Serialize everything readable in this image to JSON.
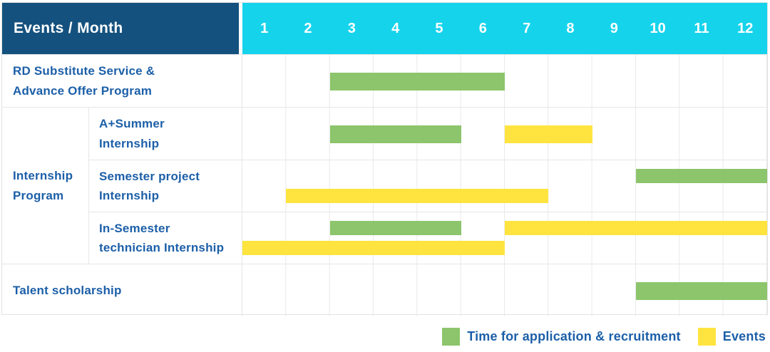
{
  "header": {
    "corner_label": "Events / Month",
    "months": [
      "1",
      "2",
      "3",
      "4",
      "5",
      "6",
      "7",
      "8",
      "9",
      "10",
      "11",
      "12"
    ]
  },
  "colors": {
    "header_bg": "#14517E",
    "months_bg": "#16D3EC",
    "application_green": "#8CC56B",
    "events_yellow": "#FFE440",
    "label_text": "#1C5FA8",
    "grid_line": "#E9E9E9",
    "border": "#E2E2E2"
  },
  "legend": {
    "items": [
      {
        "swatch": "application_green",
        "label": "Time for application & recruitment"
      },
      {
        "swatch": "events_yellow",
        "label": "Events"
      }
    ]
  },
  "chart_data": {
    "type": "gantt",
    "x_unit": "month",
    "x_ticks": [
      1,
      2,
      3,
      4,
      5,
      6,
      7,
      8,
      9,
      10,
      11,
      12
    ],
    "bar_kinds": {
      "application": "Time for application & recruitment",
      "events": "Events"
    },
    "groups": [
      {
        "label": "Internship Program",
        "label_lines": [
          "Internship",
          "Program"
        ],
        "row_indexes": [
          1,
          2,
          3
        ]
      }
    ],
    "rows": [
      {
        "label": "RD Substitute Service & Advance Offer Program",
        "label_lines": [
          "RD Substitute Service &",
          "Advance Offer Program"
        ],
        "bars": [
          {
            "kind": "application",
            "start_month": 3,
            "end_month": 6,
            "line": "center"
          }
        ]
      },
      {
        "label": "A+Summer Internship",
        "label_lines": [
          "A+Summer",
          "Internship"
        ],
        "bars": [
          {
            "kind": "application",
            "start_month": 3,
            "end_month": 5,
            "line": "center"
          },
          {
            "kind": "events",
            "start_month": 7,
            "end_month": 8,
            "line": "center"
          }
        ]
      },
      {
        "label": "Semester project Internship",
        "label_lines": [
          "Semester project",
          "Internship"
        ],
        "bars": [
          {
            "kind": "application",
            "start_month": 10,
            "end_month": 12,
            "line": "top"
          },
          {
            "kind": "events",
            "start_month": 2,
            "end_month": 7,
            "line": "bottom"
          }
        ]
      },
      {
        "label": "In-Semester technician Internship",
        "label_lines": [
          "In-Semester",
          "technician Internship"
        ],
        "bars": [
          {
            "kind": "application",
            "start_month": 3,
            "end_month": 5,
            "line": "top"
          },
          {
            "kind": "events",
            "start_month": 7,
            "end_month": 12,
            "line": "top"
          },
          {
            "kind": "events",
            "start_month": 1,
            "end_month": 6,
            "line": "bottom"
          }
        ]
      },
      {
        "label": "Talent scholarship",
        "label_lines": [
          "Talent scholarship"
        ],
        "bars": [
          {
            "kind": "application",
            "start_month": 10,
            "end_month": 12,
            "line": "center"
          }
        ]
      }
    ]
  }
}
